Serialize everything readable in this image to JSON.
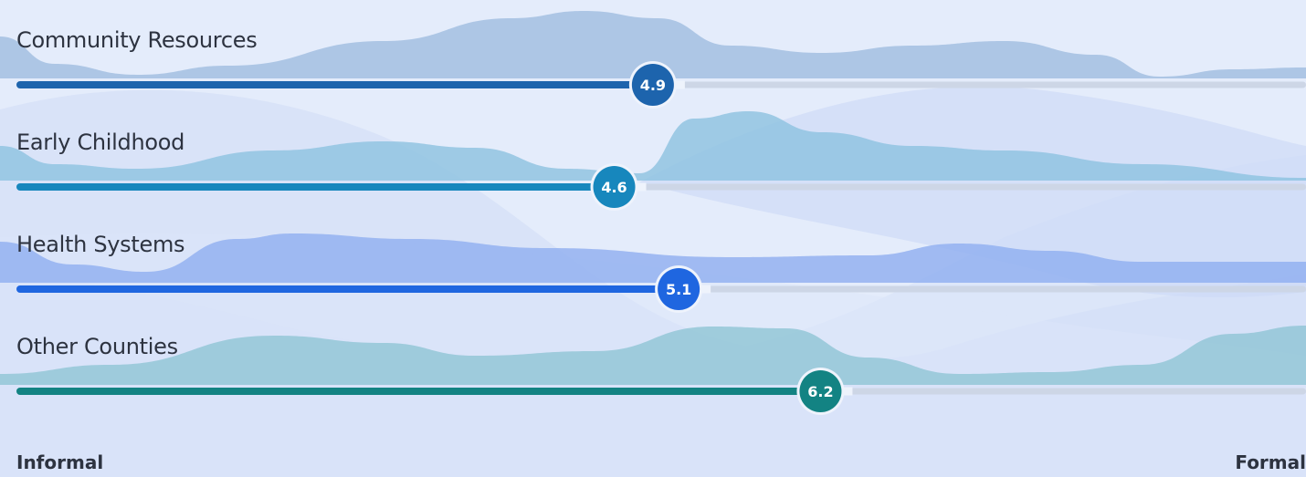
{
  "chart_data": {
    "type": "bar",
    "orientation": "horizontal",
    "categories": [
      "Community Resources",
      "Early Childhood",
      "Health Systems",
      "Other Counties"
    ],
    "values": [
      4.9,
      4.6,
      5.1,
      6.2
    ],
    "value_labels": [
      "4.9",
      "4.6",
      "5.1",
      "6.2"
    ],
    "colors": [
      "#1d64ad",
      "#1787bd",
      "#1f66e0",
      "#138383"
    ],
    "wave_colors": [
      "#9fbde0",
      "#8cc2e0",
      "#8faef0",
      "#8fc4d4"
    ],
    "track_color": "#cdd6e6",
    "xlim": [
      0,
      10
    ],
    "axis": {
      "min_label": "Informal",
      "max_label": "Formal"
    },
    "grid": false,
    "legend": "none"
  }
}
